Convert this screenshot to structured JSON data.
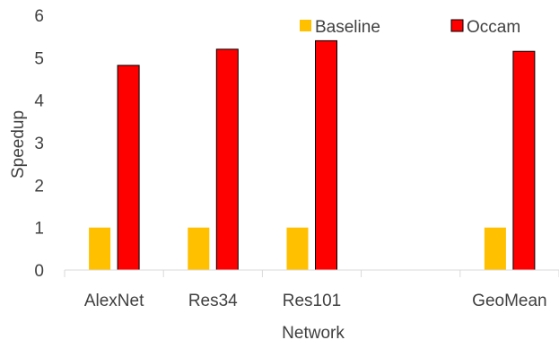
{
  "chart_data": {
    "type": "bar",
    "categories": [
      "AlexNet",
      "Res34",
      "Res101",
      "",
      "GeoMean"
    ],
    "series": [
      {
        "name": "Baseline",
        "values": [
          1,
          1,
          1,
          null,
          1
        ],
        "color": "#FFC000",
        "border": "none"
      },
      {
        "name": "Occam",
        "values": [
          4.82,
          5.2,
          5.4,
          null,
          5.15
        ],
        "color": "#FF0000",
        "border": "#000000"
      }
    ],
    "title": "",
    "xlabel": "Network",
    "ylabel": "Speedup",
    "ylim": [
      0,
      6
    ],
    "yticks": [
      0,
      1,
      2,
      3,
      4,
      5,
      6
    ],
    "grid": false,
    "legend": "top-right",
    "colors": {
      "axis": "#D9D9D9",
      "text": "#404040"
    }
  }
}
